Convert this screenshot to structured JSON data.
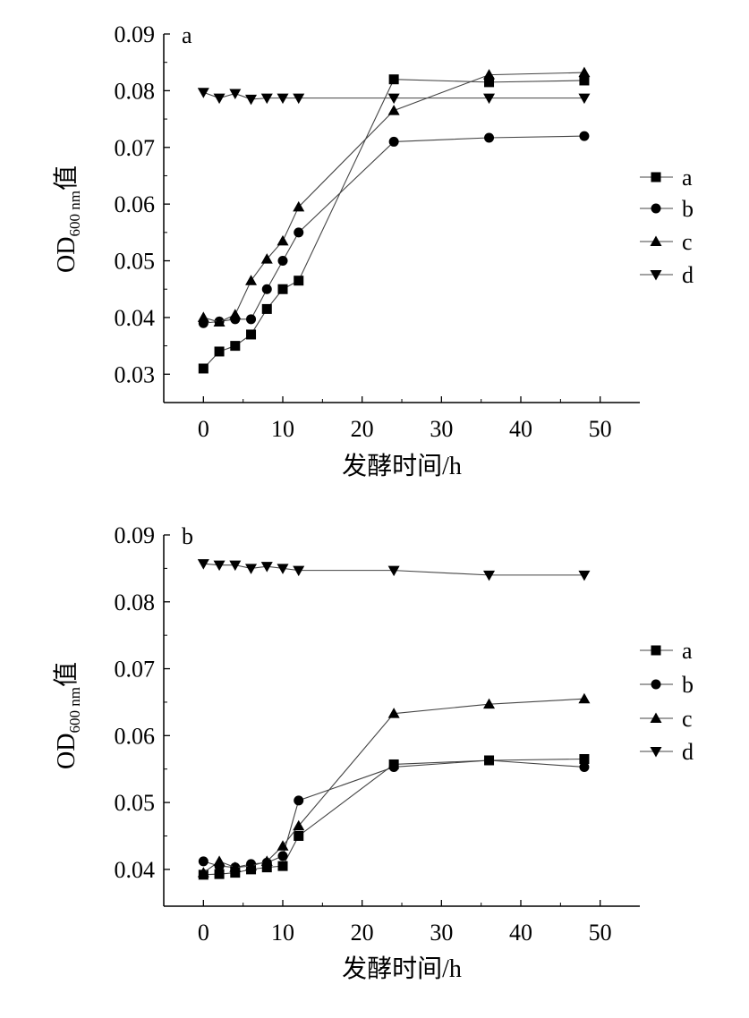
{
  "chart_data": [
    {
      "type": "line",
      "panel_label": "a",
      "xlabel": "发酵时间/h",
      "ylabel_main": "OD",
      "ylabel_sub": "600 nm",
      "ylabel_suffix": "值",
      "xlim": [
        -5,
        55
      ],
      "ylim": [
        0.025,
        0.09
      ],
      "xticks": [
        0,
        10,
        20,
        30,
        40,
        50
      ],
      "yticks": [
        0.03,
        0.04,
        0.05,
        0.06,
        0.07,
        0.08,
        0.09
      ],
      "ytick_labels": [
        "0.03",
        "0.04",
        "0.05",
        "0.06",
        "0.07",
        "0.08",
        "0.09"
      ],
      "xtick_labels": [
        "0",
        "10",
        "20",
        "30",
        "40",
        "50"
      ],
      "legend": "right",
      "x": [
        0,
        2,
        4,
        6,
        8,
        10,
        12,
        24,
        36,
        48
      ],
      "series": [
        {
          "name": "a",
          "marker": "square",
          "values": [
            0.031,
            0.034,
            0.035,
            0.037,
            0.0415,
            0.045,
            0.0465,
            0.082,
            0.0815,
            0.0818
          ]
        },
        {
          "name": "b",
          "marker": "circle",
          "values": [
            0.039,
            0.0393,
            0.0397,
            0.0397,
            0.045,
            0.05,
            0.055,
            0.071,
            0.0717,
            0.072
          ]
        },
        {
          "name": "c",
          "marker": "triangle-up",
          "values": [
            0.04,
            0.0392,
            0.0405,
            0.0465,
            0.0503,
            0.0535,
            0.0595,
            0.0765,
            0.0828,
            0.0832
          ]
        },
        {
          "name": "d",
          "marker": "triangle-down",
          "values": [
            0.0797,
            0.0787,
            0.0795,
            0.0785,
            0.0787,
            0.0787,
            0.0787,
            0.0787,
            0.0787,
            0.0787
          ]
        }
      ]
    },
    {
      "type": "line",
      "panel_label": "b",
      "xlabel": "发酵时间/h",
      "ylabel_main": "OD",
      "ylabel_sub": "600 nm",
      "ylabel_suffix": "值",
      "xlim": [
        -5,
        55
      ],
      "ylim": [
        0.0345,
        0.09
      ],
      "xticks": [
        0,
        10,
        20,
        30,
        40,
        50
      ],
      "yticks": [
        0.04,
        0.05,
        0.06,
        0.07,
        0.08,
        0.09
      ],
      "ytick_labels": [
        "0.04",
        "0.05",
        "0.06",
        "0.07",
        "0.08",
        "0.09"
      ],
      "xtick_labels": [
        "0",
        "10",
        "20",
        "30",
        "40",
        "50"
      ],
      "legend": "right",
      "x": [
        0,
        2,
        4,
        6,
        8,
        10,
        12,
        24,
        36,
        48
      ],
      "series": [
        {
          "name": "a",
          "marker": "square",
          "values": [
            0.0392,
            0.0393,
            0.0395,
            0.04,
            0.0403,
            0.0405,
            0.045,
            0.0557,
            0.0563,
            0.0565
          ]
        },
        {
          "name": "b",
          "marker": "circle",
          "values": [
            0.0412,
            0.0405,
            0.0403,
            0.0408,
            0.041,
            0.042,
            0.0503,
            0.0553,
            0.0563,
            0.0553
          ]
        },
        {
          "name": "c",
          "marker": "triangle-up",
          "values": [
            0.0395,
            0.0412,
            0.0403,
            0.0405,
            0.0412,
            0.0435,
            0.0465,
            0.0633,
            0.0647,
            0.0655
          ]
        },
        {
          "name": "d",
          "marker": "triangle-down",
          "values": [
            0.0857,
            0.0855,
            0.0855,
            0.085,
            0.0853,
            0.085,
            0.0847,
            0.0847,
            0.084,
            0.084
          ]
        }
      ]
    }
  ]
}
